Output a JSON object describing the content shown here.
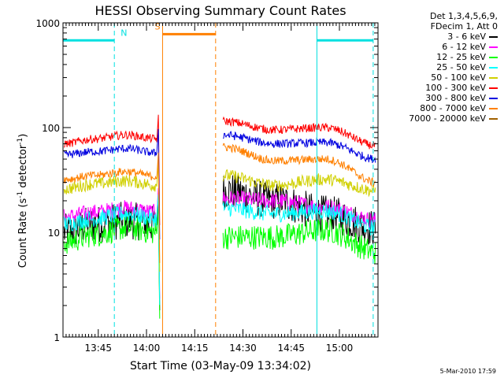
{
  "chart_data": {
    "type": "line",
    "title": "HESSI Observing Summary Count Rates",
    "xlabel": "Start Time (03-May-09 13:34:02)",
    "ylabel_main": "Count Rate (s",
    "ylabel_sup1": "-1",
    "ylabel_mid": " detector",
    "ylabel_sup2": "-1",
    "ylabel_end": ")",
    "yscale": "log",
    "ylim": [
      1,
      1000
    ],
    "xlim": [
      "13:34:02",
      "15:12:00"
    ],
    "x_ticks": [
      "13:45",
      "14:00",
      "14:15",
      "14:30",
      "14:45",
      "15:00"
    ],
    "y_ticks": [
      "1",
      "10",
      "100",
      "1000"
    ],
    "legend_header": [
      "Det 1,3,4,5,6,9,",
      "FDecim 1, Att 0"
    ],
    "gap": [
      "14:04:30",
      "14:23:30"
    ],
    "flags": [
      {
        "label": "N",
        "color": "#00e0e0",
        "intervals": [
          [
            "13:34:02",
            "13:50:00"
          ],
          [
            "14:53:00",
            "15:10:30"
          ]
        ],
        "level": 680
      },
      {
        "label": "S",
        "color": "#ff8000",
        "intervals": [
          [
            "14:05:00",
            "14:21:30"
          ]
        ],
        "level": 780
      }
    ],
    "series": [
      {
        "name": "3 - 6 keV",
        "color": "#000000",
        "pre": [
          10,
          12,
          13,
          12
        ],
        "post": [
          25,
          20,
          15,
          11
        ],
        "noise": 0.18
      },
      {
        "name": "6 - 12 keV",
        "color": "#ff00ff",
        "pre": [
          14,
          15.5,
          17,
          15.5
        ],
        "post": [
          21,
          20,
          17.5,
          13
        ],
        "noise": 0.08
      },
      {
        "name": "12 - 25 keV",
        "color": "#00ff00",
        "pre": [
          8,
          9.5,
          11,
          10
        ],
        "post": [
          9,
          9,
          10.5,
          6.5
        ],
        "noise": 0.12
      },
      {
        "name": "25 - 50 keV",
        "color": "#00ffff",
        "pre": [
          12,
          13.5,
          15,
          13.5
        ],
        "post": [
          17,
          15,
          16,
          11
        ],
        "noise": 0.08
      },
      {
        "name": "50 - 100 keV",
        "color": "#d0d000",
        "pre": [
          26,
          29,
          31,
          28
        ],
        "post": [
          35,
          28,
          32,
          25
        ],
        "noise": 0.06
      },
      {
        "name": "100 - 300 keV",
        "color": "#ff0000",
        "pre": [
          70,
          78,
          85,
          78
        ],
        "post": [
          115,
          95,
          100,
          67
        ],
        "noise": 0.04
      },
      {
        "name": "300 - 800 keV",
        "color": "#0000e0",
        "pre": [
          55,
          59,
          63,
          57
        ],
        "post": [
          85,
          70,
          72,
          50
        ],
        "noise": 0.04
      },
      {
        "name": "800 - 7000 keV",
        "color": "#ff8000",
        "pre": [
          32,
          35,
          38,
          34
        ],
        "post": [
          65,
          48,
          50,
          30
        ],
        "noise": 0.04
      },
      {
        "name": "7000 - 20000 keV",
        "color": "#a06000",
        "pre": [],
        "post": [],
        "noise": 0
      }
    ]
  },
  "footer": {
    "timestamp": "5-Mar-2010 17:59"
  }
}
